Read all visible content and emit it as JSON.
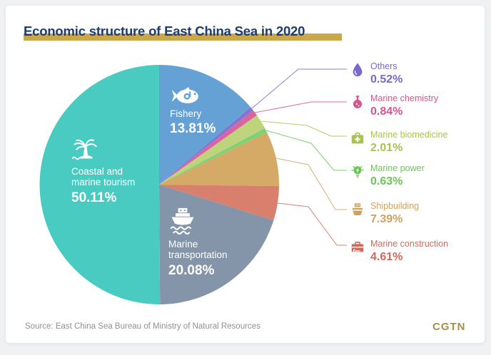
{
  "page": {
    "title": "Economic structure of East China Sea in 2020",
    "source": "Source: East China Sea Bureau of Ministry of Natural Resources",
    "brand": "CGTN"
  },
  "colors": {
    "page_background": "#f0f1f3",
    "card_background": "#ffffff",
    "title_text": "#1e3c6f",
    "title_highlight": "#c9a84c",
    "source_text": "#8f9092",
    "brand_gold": "#a98d4c",
    "inside_label_text": "#ffffff"
  },
  "chart_data": {
    "type": "pie",
    "title": "Economic structure of East China Sea in 2020",
    "unit": "%",
    "start_angle_deg": 0,
    "direction": "clockwise",
    "legend_position": "right",
    "slices": [
      {
        "label": "Fishery",
        "value": 13.81,
        "percent_label": "13.81%",
        "color": "#66a1d6",
        "accent": "#66a1d6",
        "icon": "fish-icon",
        "placement": "inside"
      },
      {
        "label": "Others",
        "value": 0.52,
        "percent_label": "0.52%",
        "color": "#8374d6",
        "accent": "#7a68d0",
        "icon": "water-drop-icon",
        "placement": "legend"
      },
      {
        "label": "Marine chemistry",
        "value": 0.84,
        "percent_label": "0.84%",
        "color": "#d8659e",
        "accent": "#d8538f",
        "icon": "chemistry-flask-icon",
        "placement": "legend"
      },
      {
        "label": "Marine biomedicine",
        "value": 2.01,
        "percent_label": "2.01%",
        "color": "#bed47c",
        "accent": "#a8c353",
        "icon": "first-aid-kit-icon",
        "placement": "legend"
      },
      {
        "label": "Marine power",
        "value": 0.63,
        "percent_label": "0.63%",
        "color": "#7ed276",
        "accent": "#6cc655",
        "icon": "light-bulb-icon",
        "placement": "legend"
      },
      {
        "label": "Shipbuilding",
        "value": 7.39,
        "percent_label": "7.39%",
        "color": "#d5aa66",
        "accent": "#cda25d",
        "icon": "ship-icon",
        "placement": "legend"
      },
      {
        "label": "Marine construction",
        "value": 4.61,
        "percent_label": "4.61%",
        "color": "#d87f6e",
        "accent": "#d3685a",
        "icon": "toolbox-icon",
        "placement": "legend"
      },
      {
        "label": "Marine transportation",
        "value": 20.08,
        "percent_label": "20.08%",
        "color": "#8495a9",
        "accent": "#8495a9",
        "icon": "cargo-ship-icon",
        "placement": "inside"
      },
      {
        "label": "Coastal and marine tourism",
        "value": 50.11,
        "percent_label": "50.11%",
        "color": "#49cbc2",
        "accent": "#49cbc2",
        "icon": "palm-island-icon",
        "placement": "inside"
      }
    ]
  }
}
